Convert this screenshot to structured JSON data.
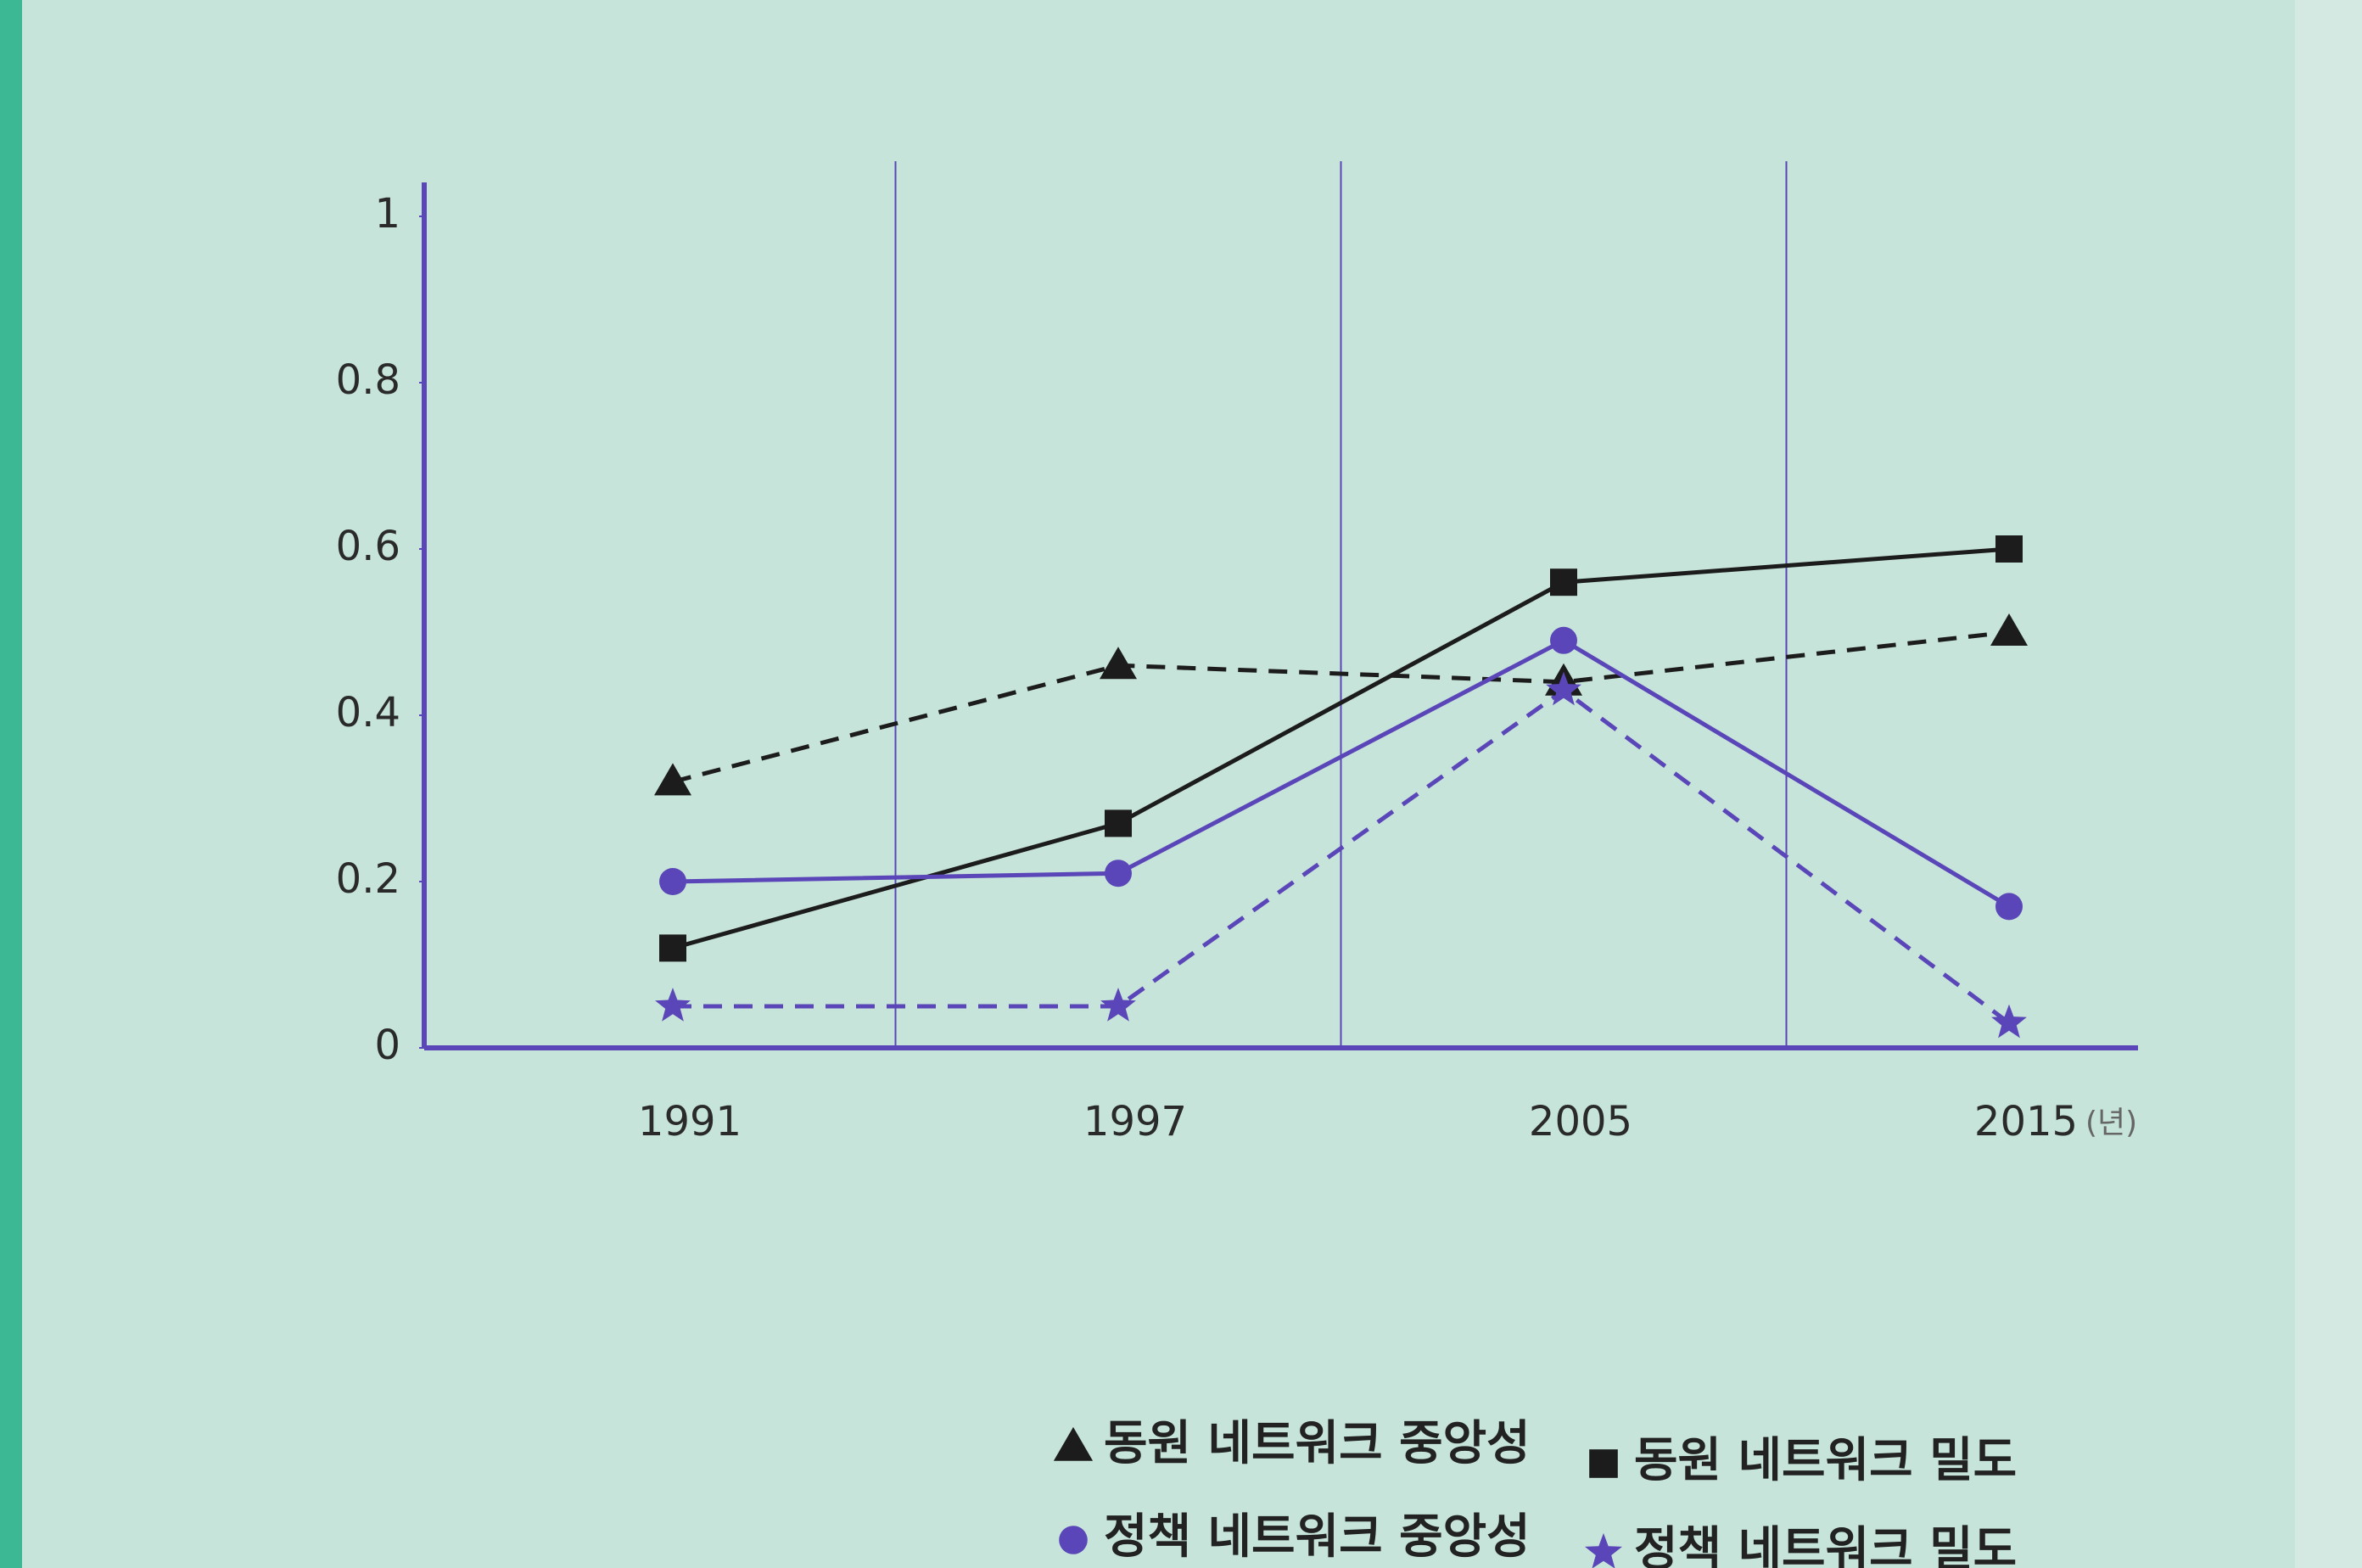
{
  "chart_data": {
    "type": "line",
    "x_label": "(년)",
    "categories": [
      "1991",
      "1997",
      "2005",
      "2015"
    ],
    "ylim": [
      0,
      1
    ],
    "yticks": [
      0,
      0.2,
      0.4,
      0.6,
      0.8,
      1
    ],
    "series": [
      {
        "name": "동원 네트워크 중앙성",
        "color": "#1c1c1c",
        "marker": "triangle",
        "linestyle": "dashed",
        "values": [
          0.32,
          0.46,
          0.44,
          0.5
        ]
      },
      {
        "name": "동원 네트워크 밀도",
        "color": "#1c1c1c",
        "marker": "square",
        "linestyle": "solid",
        "values": [
          0.12,
          0.27,
          0.56,
          0.6
        ]
      },
      {
        "name": "정책 네트워크 중앙성",
        "color": "#5a46b8",
        "marker": "circle",
        "linestyle": "solid",
        "values": [
          0.2,
          0.21,
          0.49,
          0.17
        ]
      },
      {
        "name": "정책 네트워크 밀도",
        "color": "#5a46b8",
        "marker": "star",
        "linestyle": "dashed",
        "values": [
          0.05,
          0.05,
          0.43,
          0.03
        ]
      }
    ],
    "legend": "bottom"
  }
}
